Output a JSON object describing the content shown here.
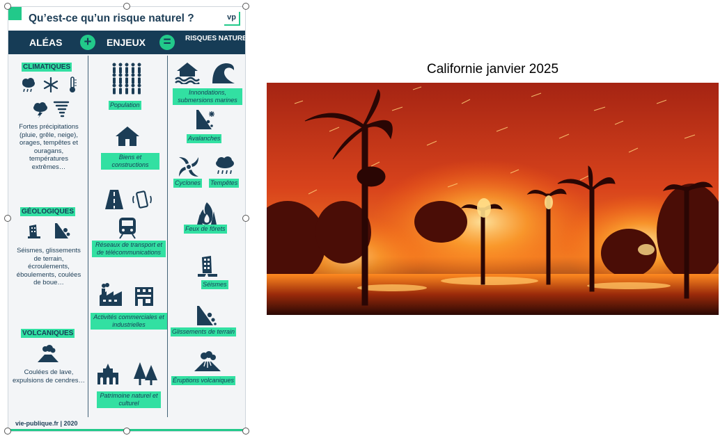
{
  "infographic": {
    "title": "Qu’est-ce qu’un risque naturel ?",
    "logo": "vp",
    "columns": {
      "aleas": "ALÉAS",
      "enjeux": "ENJEUX",
      "risques": "RISQUES NATURELS"
    },
    "operators": {
      "plus": "+",
      "equals": "="
    },
    "aleas": {
      "climatiques": {
        "label": "CLIMATIQUES",
        "description": "Fortes précipitations (pluie, grêle, neige), orages, tempêtes et ouragans, températures extrêmes…",
        "icons": [
          "rain-cloud-icon",
          "snowflake-icon",
          "thermometer-icon",
          "storm-cloud-icon",
          "tornado-icon"
        ]
      },
      "geologiques": {
        "label": "GÉOLOGIQUES",
        "description": "Séismes, glissements de terrain, écroulements, éboulements, coulées de boue…",
        "icons": [
          "collapsing-building-icon",
          "rockfall-icon"
        ]
      },
      "volcaniques": {
        "label": "VOLCANIQUES",
        "description": "Coulées de lave, expulsions de cendres…",
        "icons": [
          "volcano-icon"
        ]
      }
    },
    "enjeux": {
      "population": "Population",
      "biens": "Biens et constructions",
      "reseaux": "Réseaux de transport et de télécommunications",
      "activites": "Activités commerciales et industrielles",
      "patrimoine": "Patrimoine naturel et culturel"
    },
    "risques": {
      "inondations": "Innondations, submersions marines",
      "avalanches": "Avalanches",
      "cyclones": "Cyclones",
      "tempetes": "Tempêtes",
      "feux": "Feux de fôrets",
      "seismes": "Séismes",
      "glissements": "Glissements de terrain",
      "eruptions": "Éruptions volcaniques"
    },
    "footer": "vie-publique.fr | 2020",
    "colors": {
      "navy": "#163c56",
      "accent": "#32e0a2",
      "background": "#f3f5f7"
    }
  },
  "photo": {
    "caption": "Californie  janvier 2025",
    "colors": {
      "fire": "#ff7a1a",
      "sky": "#c9301a",
      "night": "#3a0a05"
    }
  }
}
